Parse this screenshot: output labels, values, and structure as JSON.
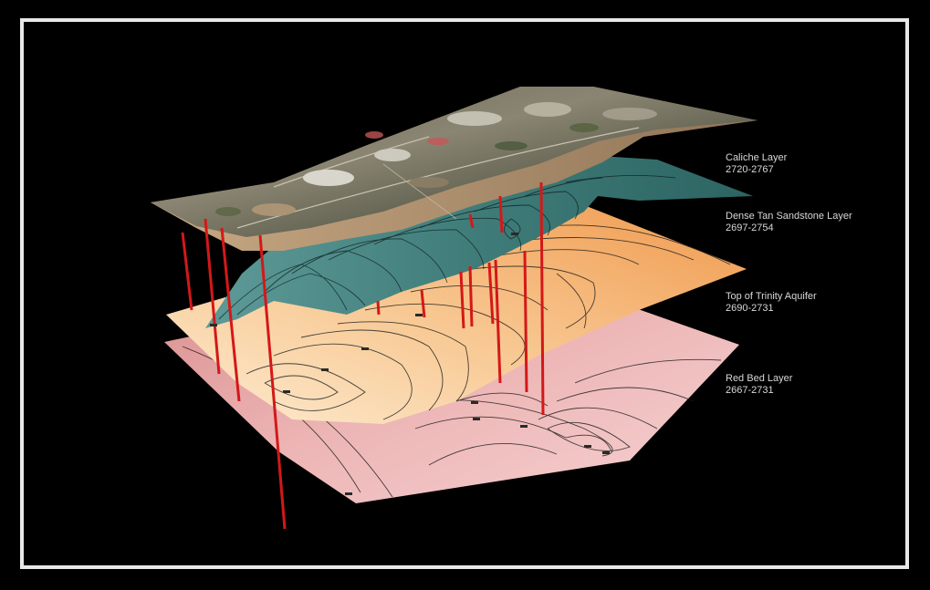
{
  "layers": [
    {
      "key": "caliche",
      "name": "Caliche Layer",
      "range": "2720-2767",
      "color": "#8a7560"
    },
    {
      "key": "sandstone",
      "name": "Dense Tan Sandstone Layer",
      "range": "2697-2754",
      "color": "#3e7d7a"
    },
    {
      "key": "trinity",
      "name": "Top of Trinity Aquifer",
      "range": "2690-2731",
      "color": "#f2a660"
    },
    {
      "key": "redbed",
      "name": "Red Bed Layer",
      "range": "2667-2731",
      "color": "#e8a8a8"
    }
  ],
  "colors": {
    "background": "#000000",
    "frame": "#e8e8e8",
    "well": "#d41818",
    "contour": "#1a1a1a"
  }
}
